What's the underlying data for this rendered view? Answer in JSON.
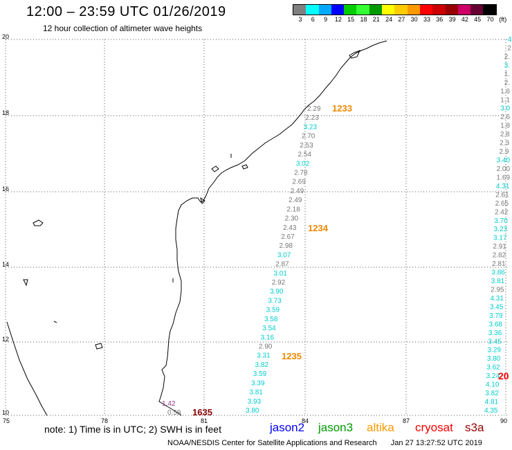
{
  "header": {
    "title": "12:00 – 23:59 UTC 01/26/2019",
    "subtitle": "12 hour collection of altimeter wave heights"
  },
  "legend": {
    "colors": [
      "#808080",
      "#00ffff",
      "#00aaff",
      "#0000ff",
      "#00cc00",
      "#33ff33",
      "#009900",
      "#ffff00",
      "#ffcc00",
      "#ff9900",
      "#ff0000",
      "#cc0000",
      "#990000",
      "#cc0066",
      "#660033",
      "#000000"
    ],
    "labels": [
      "3",
      "6",
      "9",
      "12",
      "15",
      "18",
      "21",
      "24",
      "27",
      "30",
      "33",
      "36",
      "39",
      "42",
      "45",
      "70",
      "(ft)"
    ]
  },
  "axes": {
    "x_ticks": [
      "75",
      "78",
      "81",
      "84",
      "87",
      "90"
    ],
    "y_ticks": [
      "20",
      "18",
      "16",
      "14",
      "12",
      "10"
    ]
  },
  "tracks": {
    "track_1233": {
      "pass_label": "1233",
      "values": [
        {
          "v": "2.29",
          "c": "#777777"
        },
        {
          "v": "2.23",
          "c": "#777777"
        },
        {
          "v": "3.23",
          "c": "#00cccc"
        },
        {
          "v": "2.70",
          "c": "#777777"
        },
        {
          "v": "2.53",
          "c": "#777777"
        },
        {
          "v": "2.54",
          "c": "#777777"
        },
        {
          "v": "3.02",
          "c": "#00cccc"
        },
        {
          "v": "2.78",
          "c": "#777777"
        },
        {
          "v": "2.69",
          "c": "#777777"
        },
        {
          "v": "2.49",
          "c": "#777777"
        },
        {
          "v": "2.49",
          "c": "#777777"
        },
        {
          "v": "2.18",
          "c": "#777777"
        },
        {
          "v": "2.30",
          "c": "#777777"
        },
        {
          "v": "2.43",
          "c": "#777777"
        },
        {
          "v": "2.67",
          "c": "#777777"
        },
        {
          "v": "2.98",
          "c": "#777777"
        },
        {
          "v": "3.07",
          "c": "#00cccc"
        },
        {
          "v": "2.87",
          "c": "#777777"
        },
        {
          "v": "3.01",
          "c": "#00cccc"
        },
        {
          "v": "2.92",
          "c": "#777777"
        },
        {
          "v": "3.90",
          "c": "#00cccc"
        },
        {
          "v": "3.73",
          "c": "#00cccc"
        },
        {
          "v": "3.59",
          "c": "#00cccc"
        },
        {
          "v": "3.58",
          "c": "#00cccc"
        },
        {
          "v": "3.54",
          "c": "#00cccc"
        },
        {
          "v": "3.16",
          "c": "#00cccc"
        },
        {
          "v": "2.90",
          "c": "#777777"
        },
        {
          "v": "3.31",
          "c": "#00cccc"
        },
        {
          "v": "3.82",
          "c": "#00cccc"
        },
        {
          "v": "3.59",
          "c": "#00cccc"
        },
        {
          "v": "3.39",
          "c": "#00cccc"
        },
        {
          "v": "3.81",
          "c": "#00cccc"
        },
        {
          "v": "3.93",
          "c": "#00cccc"
        },
        {
          "v": "3.80",
          "c": "#00cccc"
        }
      ],
      "pass_1234": "1234",
      "pass_1235": "1235"
    },
    "track_right": {
      "values": [
        {
          "v": "4",
          "c": "#00cccc"
        },
        {
          "v": "2",
          "c": "#777777"
        },
        {
          "v": "2.",
          "c": "#777777"
        },
        {
          "v": "3.",
          "c": "#00cccc"
        },
        {
          "v": "1.",
          "c": "#777777"
        },
        {
          "v": "2.",
          "c": "#777777"
        },
        {
          "v": "1.6",
          "c": "#777777"
        },
        {
          "v": "1.1",
          "c": "#777777"
        },
        {
          "v": "3.0",
          "c": "#00cccc"
        },
        {
          "v": "2.6",
          "c": "#777777"
        },
        {
          "v": "1.8",
          "c": "#777777"
        },
        {
          "v": "2.8",
          "c": "#777777"
        },
        {
          "v": "2.3",
          "c": "#777777"
        },
        {
          "v": "2.9",
          "c": "#777777"
        },
        {
          "v": "3.40",
          "c": "#00cccc"
        },
        {
          "v": "2.00",
          "c": "#777777"
        },
        {
          "v": "1.69",
          "c": "#777777"
        },
        {
          "v": "4.31",
          "c": "#00cccc"
        },
        {
          "v": "2.61",
          "c": "#777777"
        },
        {
          "v": "2.65",
          "c": "#777777"
        },
        {
          "v": "2.42",
          "c": "#777777"
        },
        {
          "v": "3.70",
          "c": "#00cccc"
        },
        {
          "v": "3.23",
          "c": "#00cccc"
        },
        {
          "v": "3.17",
          "c": "#00cccc"
        },
        {
          "v": "2.91",
          "c": "#777777"
        },
        {
          "v": "2.82",
          "c": "#777777"
        },
        {
          "v": "2.81",
          "c": "#777777"
        },
        {
          "v": "3.86",
          "c": "#00cccc"
        },
        {
          "v": "3.81",
          "c": "#00cccc"
        },
        {
          "v": "2.95",
          "c": "#777777"
        },
        {
          "v": "4.31",
          "c": "#00cccc"
        },
        {
          "v": "3.45",
          "c": "#00cccc"
        },
        {
          "v": "3.79",
          "c": "#00cccc"
        },
        {
          "v": "3.68",
          "c": "#00cccc"
        },
        {
          "v": "3.36",
          "c": "#00cccc"
        },
        {
          "v": "3.45",
          "c": "#00cccc"
        },
        {
          "v": "3.29",
          "c": "#00cccc"
        },
        {
          "v": "3.80",
          "c": "#00cccc"
        },
        {
          "v": "3.62",
          "c": "#00cccc"
        },
        {
          "v": "3.24",
          "c": "#00cccc"
        },
        {
          "v": "4.10",
          "c": "#00cccc"
        },
        {
          "v": "3.82",
          "c": "#00cccc"
        },
        {
          "v": "4.81",
          "c": "#00cccc"
        },
        {
          "v": "4.35",
          "c": "#00cccc"
        }
      ],
      "edge_label": "20"
    },
    "bottom": {
      "v1": "1.42",
      "v2": "0.59",
      "pass_1635": "1635"
    }
  },
  "footer": {
    "note": "note: 1) Time is in UTC; 2) SWH is in feet",
    "satellites": [
      {
        "name": "jason2",
        "color": "#0000ff"
      },
      {
        "name": "jason3",
        "color": "#009900"
      },
      {
        "name": "altika",
        "color": "#ff9900"
      },
      {
        "name": "cryosat",
        "color": "#ff0000"
      },
      {
        "name": "s3a",
        "color": "#990000"
      }
    ],
    "credit": "NOAA/NESDIS Center for Satellite Applications and Research",
    "timestamp": "Jan 27 13:27:52 UTC 2019"
  },
  "colors": {
    "pass_orange": "#ee8800",
    "pass_dark": "#880000",
    "cryosat_red": "#ff0000",
    "purple": "#993399"
  }
}
